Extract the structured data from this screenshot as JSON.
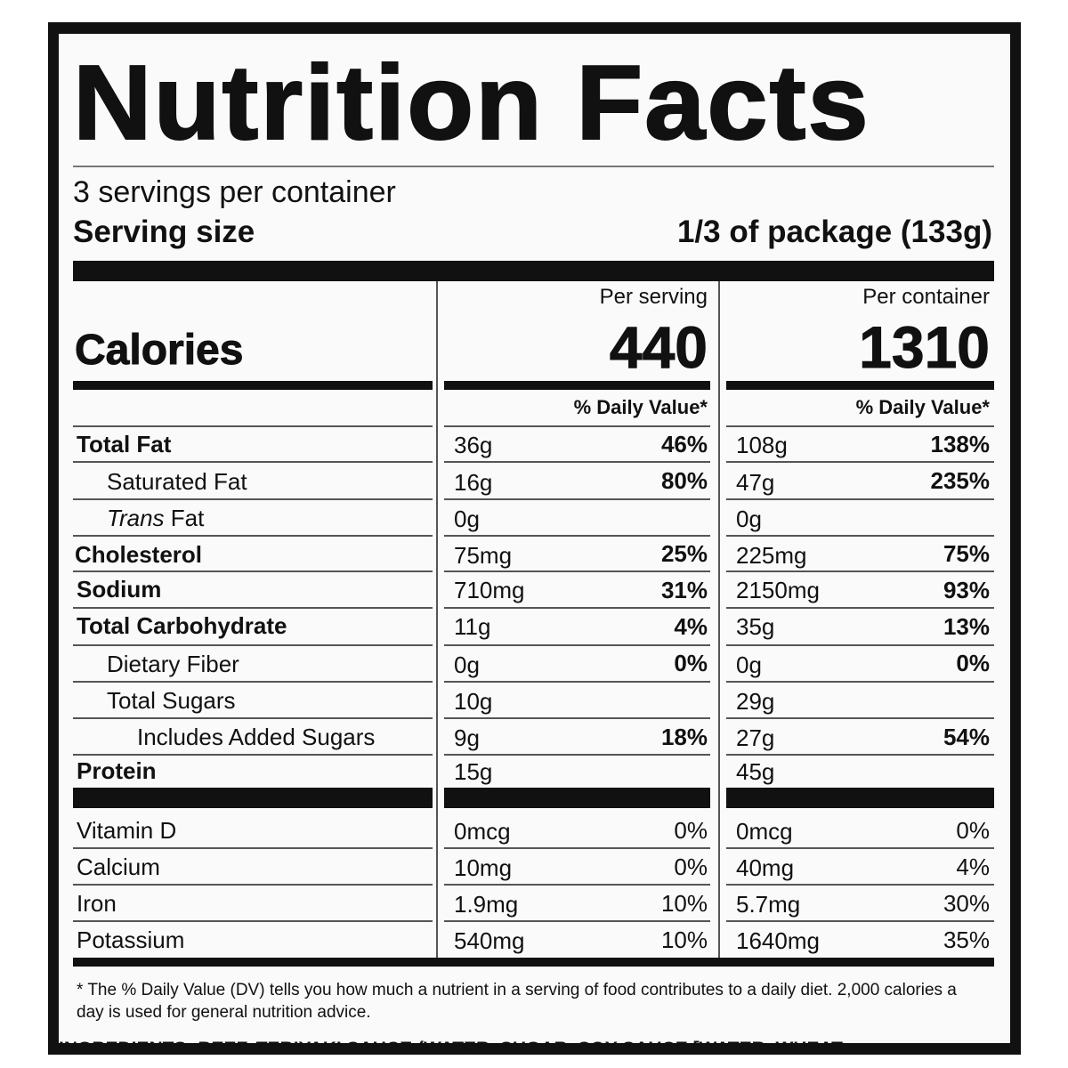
{
  "title": "Nutrition Facts",
  "servings_per_container": "3 servings per container",
  "serving_size_label": "Serving size",
  "serving_size_value": "1/3 of package (133g)",
  "columns": {
    "per_serving": "Per serving",
    "per_container": "Per container",
    "dv_header": "% Daily Value*"
  },
  "calories": {
    "label": "Calories",
    "per_serving": "440",
    "per_container": "1310"
  },
  "nutrients": [
    {
      "name": "Total Fat",
      "bold": true,
      "s_amt": "36g",
      "s_pct": "46%",
      "c_amt": "108g",
      "c_pct": "138%"
    },
    {
      "name": "Saturated Fat",
      "bold": false,
      "s_amt": "16g",
      "s_pct": "80%",
      "c_amt": "47g",
      "c_pct": "235%"
    },
    {
      "name_italic": "Trans",
      "name_rest": " Fat",
      "bold": false,
      "s_amt": "0g",
      "s_pct": "",
      "c_amt": "0g",
      "c_pct": ""
    },
    {
      "name": "Cholesterol",
      "bold": true,
      "s_amt": "75mg",
      "s_pct": "25%",
      "c_amt": "225mg",
      "c_pct": "75%"
    },
    {
      "name": "Sodium",
      "bold": true,
      "s_amt": "710mg",
      "s_pct": "31%",
      "c_amt": "2150mg",
      "c_pct": "93%"
    },
    {
      "name": "Total Carbohydrate",
      "bold": true,
      "s_amt": "11g",
      "s_pct": "4%",
      "c_amt": "35g",
      "c_pct": "13%"
    },
    {
      "name": "Dietary Fiber",
      "bold": false,
      "s_amt": "0g",
      "s_pct": "0%",
      "c_amt": "0g",
      "c_pct": "0%"
    },
    {
      "name": "Total Sugars",
      "bold": false,
      "s_amt": "10g",
      "s_pct": "",
      "c_amt": "29g",
      "c_pct": ""
    },
    {
      "name": "Includes Added Sugars",
      "bold": false,
      "s_amt": "9g",
      "s_pct": "18%",
      "c_amt": "27g",
      "c_pct": "54%"
    },
    {
      "name": "Protein",
      "bold": true,
      "s_amt": "15g",
      "s_pct": "",
      "c_amt": "45g",
      "c_pct": ""
    }
  ],
  "vitamins": [
    {
      "name": "Vitamin D",
      "s_amt": "0mcg",
      "s_pct": "0%",
      "c_amt": "0mcg",
      "c_pct": "0%"
    },
    {
      "name": "Calcium",
      "s_amt": "10mg",
      "s_pct": "0%",
      "c_amt": "40mg",
      "c_pct": "4%"
    },
    {
      "name": "Iron",
      "s_amt": "1.9mg",
      "s_pct": "10%",
      "c_amt": "5.7mg",
      "c_pct": "30%"
    },
    {
      "name": "Potassium",
      "s_amt": "540mg",
      "s_pct": "10%",
      "c_amt": "1640mg",
      "c_pct": "35%"
    }
  ],
  "footnote": "* The % Daily Value (DV) tells you how much a nutrient in  a serving of food contributes to a daily diet. 2,000 calories a day is used for general nutrition advice.",
  "ingredients_partial": "INGREDIENTS: BEEF, TERIYAKI SAUCE (WATER, SUGAR, SOY SAUCE [WATER, WHEAT"
}
